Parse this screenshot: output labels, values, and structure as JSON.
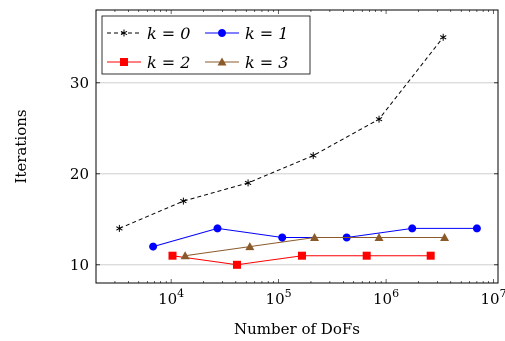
{
  "chart_data": {
    "type": "line",
    "title": "",
    "xlabel": "Number of DoFs",
    "ylabel": "Iterations",
    "xscale": "log",
    "xlim": [
      2000,
      11000000
    ],
    "ylim": [
      8,
      38
    ],
    "grid": "horizontal",
    "legend_placement": "top-left",
    "x_ticks": [
      {
        "value": 10000,
        "mantissa": "10",
        "exp": "4"
      },
      {
        "value": 100000,
        "mantissa": "10",
        "exp": "5"
      },
      {
        "value": 1000000,
        "mantissa": "10",
        "exp": "6"
      },
      {
        "value": 10000000,
        "mantissa": "10",
        "exp": "7"
      }
    ],
    "y_ticks": [
      10,
      20,
      30
    ],
    "series": [
      {
        "name": "k = 0",
        "color": "#000000",
        "dashed": true,
        "marker": "star",
        "points": [
          [
            3300,
            14
          ],
          [
            13000,
            17
          ],
          [
            52000,
            19
          ],
          [
            210000,
            22
          ],
          [
            860000,
            26
          ],
          [
            3400000,
            35
          ]
        ]
      },
      {
        "name": "k = 1",
        "color": "#0000ff",
        "dashed": false,
        "marker": "circle",
        "points": [
          [
            6800,
            12
          ],
          [
            27000,
            14
          ],
          [
            108000,
            13
          ],
          [
            430000,
            13
          ],
          [
            1750000,
            14
          ],
          [
            7000000,
            14
          ]
        ]
      },
      {
        "name": "k = 2",
        "color": "#ff0000",
        "dashed": false,
        "marker": "square",
        "points": [
          [
            10300,
            11
          ],
          [
            41000,
            10
          ],
          [
            165000,
            11
          ],
          [
            660000,
            11
          ],
          [
            2600000,
            11
          ]
        ]
      },
      {
        "name": "k = 3",
        "color": "#8b5a2b",
        "dashed": false,
        "marker": "triangle",
        "points": [
          [
            13500,
            11
          ],
          [
            54000,
            12
          ],
          [
            216000,
            13
          ],
          [
            860000,
            13
          ],
          [
            3500000,
            13
          ]
        ]
      }
    ]
  }
}
